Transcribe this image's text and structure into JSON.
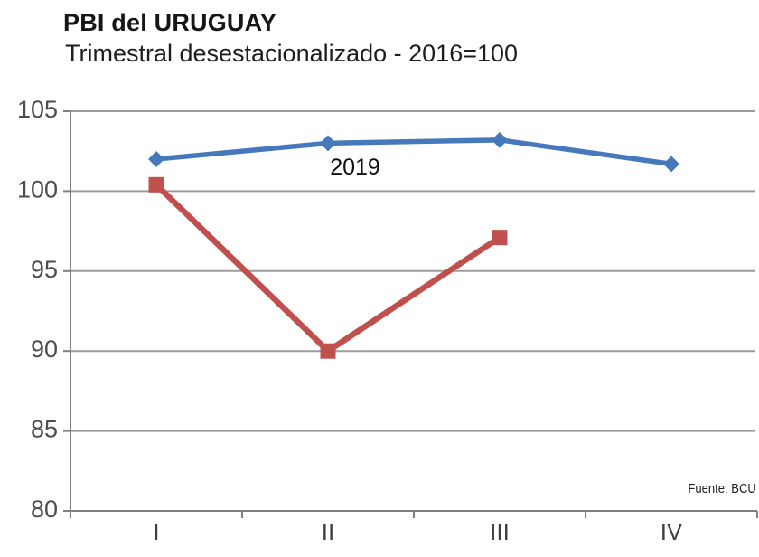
{
  "header": {
    "title": "PBI del URUGUAY",
    "subtitle": "Trimestral desestacionalizado - 2016=100"
  },
  "annotation": {
    "label_2019": "2019"
  },
  "source": {
    "label": "Fuente: BCU"
  },
  "colors": {
    "blue": "#4679BB",
    "red": "#C0504D",
    "gridline": "#9C9C9C",
    "axis": "#7F7F7F"
  },
  "chart_data": {
    "type": "line",
    "title": "PBI del URUGUAY",
    "subtitle": "Trimestral desestacionalizado - 2016=100",
    "source": "Fuente: BCU",
    "categories": [
      "I",
      "II",
      "III",
      "IV"
    ],
    "series": [
      {
        "name": "2019",
        "color": "blue",
        "marker": "diamond",
        "values": [
          102.0,
          103.0,
          103.2,
          101.7
        ]
      },
      {
        "name": "",
        "color": "red",
        "marker": "square",
        "values": [
          100.4,
          90.0,
          97.1
        ]
      }
    ],
    "xlabel": "",
    "ylabel": "",
    "ylim": [
      80,
      105
    ],
    "ytick_step": 5,
    "grid": true,
    "legend": "none"
  }
}
